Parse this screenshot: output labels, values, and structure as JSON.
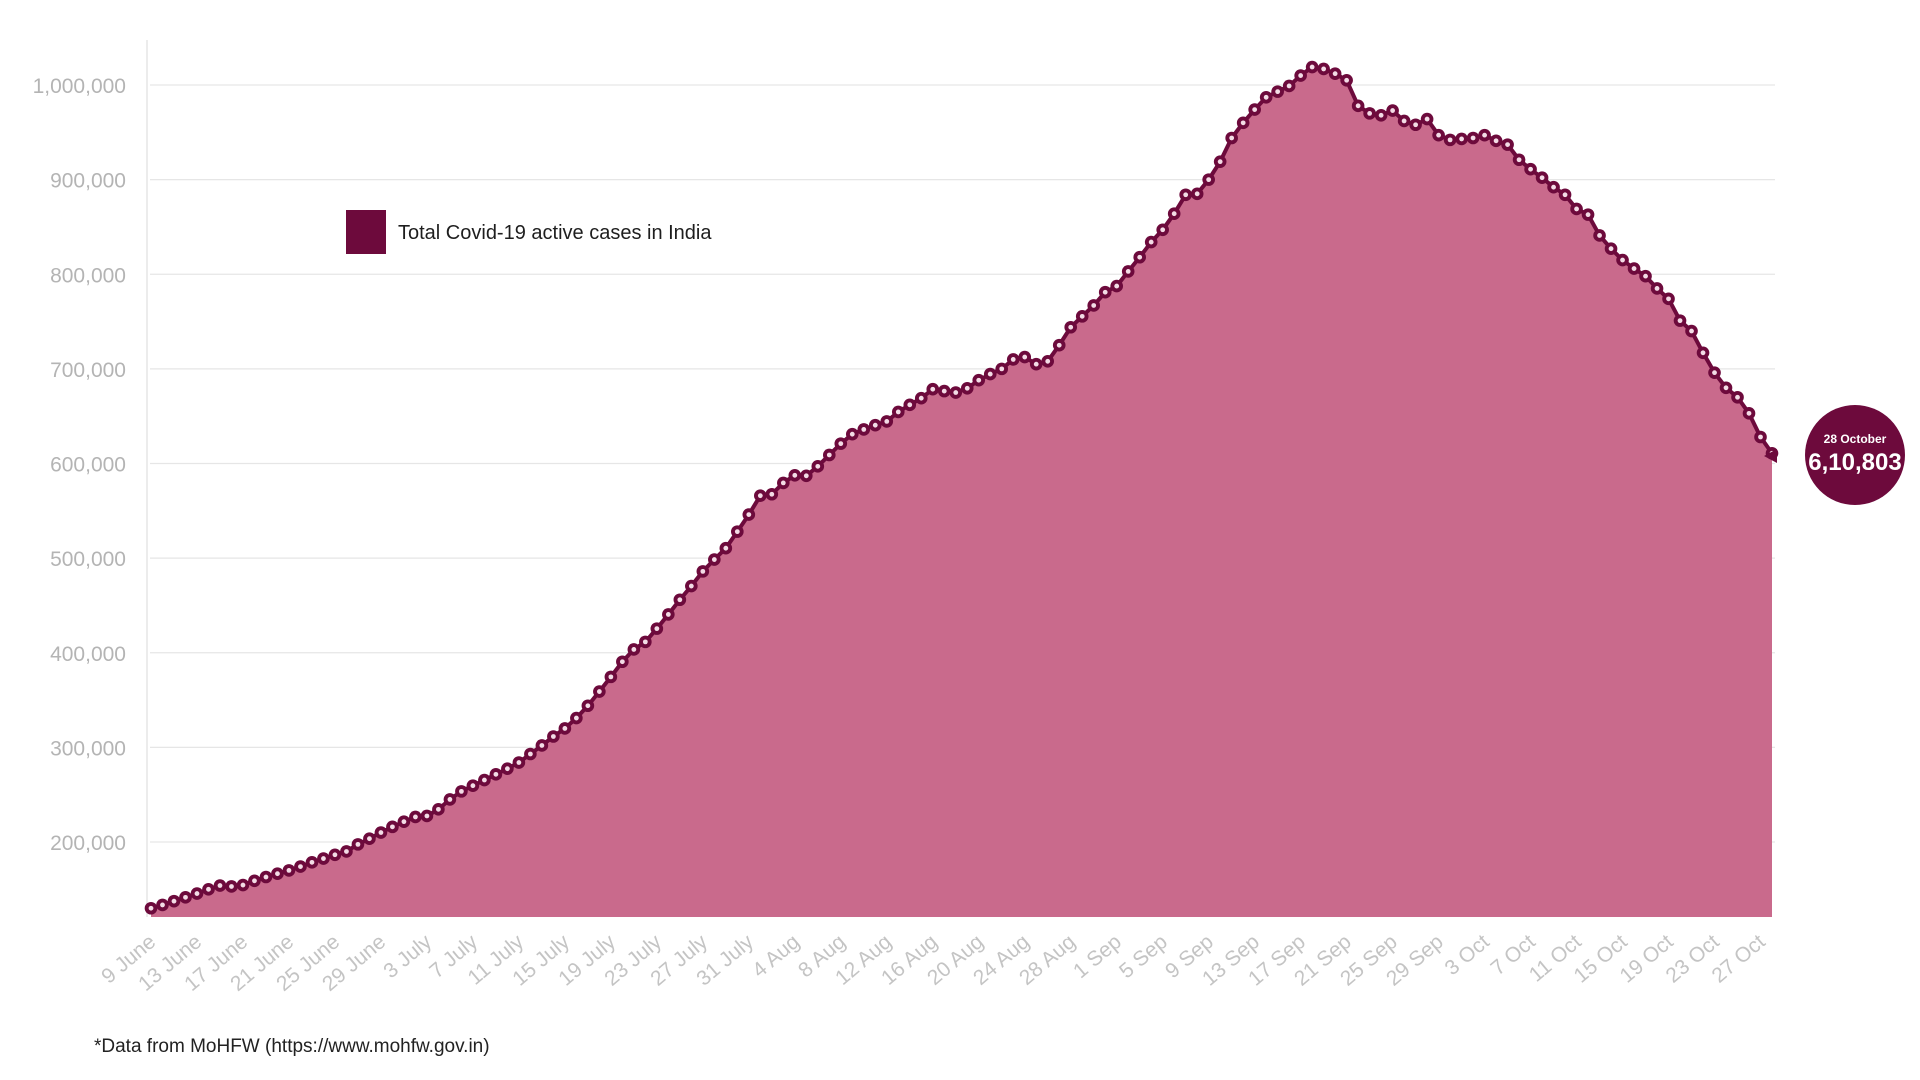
{
  "colors": {
    "area_fill": "#c96a8c",
    "line": "#6d0a3c",
    "marker_fill": "#6d0a3c",
    "marker_center": "#f3dce6",
    "legend_swatch": "#6d0a3c",
    "badge": "#6d0a3c",
    "grid": "#e6e6e6",
    "tick_text": "#b8b8b8"
  },
  "chart_data": {
    "type": "area",
    "title": "",
    "xlabel": "",
    "ylabel": "",
    "ylim": [
      122000,
      1040000
    ],
    "grid": true,
    "legend_position": "top-left",
    "yticks": [
      200000,
      300000,
      400000,
      500000,
      600000,
      700000,
      800000,
      900000,
      1000000
    ],
    "ytick_labels": [
      "200,000",
      "300,000",
      "400,000",
      "500,000",
      "600,000",
      "700,000",
      "800,000",
      "900,000",
      "1,000,000"
    ],
    "xtick_labels": [
      "9 June",
      "13 June",
      "17 June",
      "21 June",
      "25 June",
      "29 June",
      "3 July",
      "7 July",
      "11 July",
      "15 July",
      "19 July",
      "23 July",
      "27 July",
      "31 July",
      "4 Aug",
      "8 Aug",
      "12 Aug",
      "16 Aug",
      "20 Aug",
      "24 Aug",
      "28 Aug",
      "1 Sep",
      "5 Sep",
      "9 Sep",
      "13 Sep",
      "17 Sep",
      "21 Sep",
      "25 Sep",
      "29 Sep",
      "3 Oct",
      "7 Oct",
      "11 Oct",
      "15 Oct",
      "19 Oct",
      "23 Oct",
      "27 Oct"
    ],
    "x_start": "9 June",
    "x_end": "28 October",
    "series": [
      {
        "name": "Total Covid-19 active cases in India",
        "values": [
          130000,
          133500,
          137500,
          141500,
          145500,
          150000,
          154000,
          153000,
          154500,
          159000,
          163000,
          166500,
          170000,
          174000,
          178500,
          182500,
          186500,
          190000,
          197500,
          203500,
          210000,
          216000,
          221500,
          226500,
          227500,
          234500,
          245000,
          253500,
          259500,
          265500,
          271500,
          277500,
          284000,
          293000,
          302000,
          311500,
          320000,
          331000,
          344000,
          359000,
          374500,
          390500,
          403500,
          411500,
          425500,
          440500,
          456000,
          470500,
          486000,
          498500,
          510500,
          528000,
          546000,
          566000,
          567500,
          579500,
          587500,
          587000,
          597000,
          609000,
          621000,
          631000,
          636000,
          640500,
          644500,
          654500,
          662000,
          669000,
          678500,
          676500,
          675000,
          679500,
          688000,
          694500,
          700000,
          710000,
          712500,
          705000,
          708000,
          725000,
          744000,
          755500,
          767000,
          781000,
          787500,
          803000,
          818000,
          834000,
          847000,
          864000,
          884000,
          885000,
          900000,
          919000,
          944000,
          960000,
          974000,
          987000,
          993000,
          999000,
          1010000,
          1019000,
          1017000,
          1012000,
          1005000,
          978000,
          970000,
          968000,
          973000,
          962000,
          958000,
          964000,
          947000,
          942000,
          943000,
          944000,
          947000,
          941000,
          937000,
          921000,
          911000,
          902000,
          892000,
          884000,
          869000,
          863000,
          841000,
          827000,
          815000,
          806000,
          798000,
          785000,
          774000,
          751000,
          740000,
          717000,
          696000,
          680000,
          670000,
          653000,
          628000,
          610803
        ]
      }
    ],
    "annotation": {
      "date": "28 October",
      "value_label": "6,10,803"
    }
  },
  "legend": {
    "label": "Total Covid-19 active cases in India"
  },
  "footnote": "*Data from MoHFW (https://www.mohfw.gov.in)"
}
